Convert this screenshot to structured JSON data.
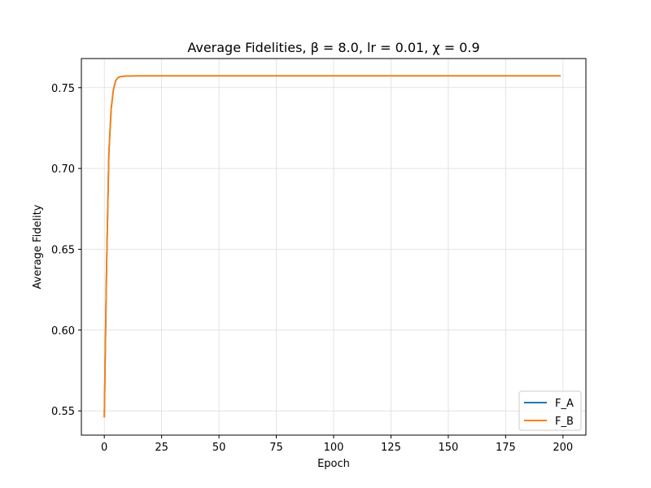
{
  "chart_data": {
    "type": "line",
    "title": "Average Fidelities, β = 8.0, lr = 0.01, χ = 0.9",
    "xlabel": "Epoch",
    "ylabel": "Average Fidelity",
    "xlim": [
      -10,
      210
    ],
    "ylim": [
      0.535,
      0.768
    ],
    "xticks": [
      0,
      25,
      50,
      75,
      100,
      125,
      150,
      175,
      200
    ],
    "xtick_labels": [
      "0",
      "25",
      "50",
      "75",
      "100",
      "125",
      "150",
      "175",
      "200"
    ],
    "yticks": [
      0.55,
      0.6,
      0.65,
      0.7,
      0.75
    ],
    "ytick_labels": [
      "0.55",
      "0.60",
      "0.65",
      "0.70",
      "0.75"
    ],
    "grid": true,
    "legend_position": "lower-right",
    "series": [
      {
        "name": "F_A",
        "color": "#1f77b4",
        "points": [
          [
            0,
            0.546
          ],
          [
            1,
            0.64
          ],
          [
            2,
            0.71
          ],
          [
            3,
            0.737
          ],
          [
            4,
            0.749
          ],
          [
            5,
            0.7545
          ],
          [
            6,
            0.7562
          ],
          [
            7,
            0.7568
          ],
          [
            8,
            0.757
          ],
          [
            10,
            0.7572
          ],
          [
            15,
            0.7573
          ],
          [
            20,
            0.7573
          ],
          [
            199,
            0.7573
          ]
        ]
      },
      {
        "name": "F_B",
        "color": "#ff7f0e",
        "points": [
          [
            0,
            0.546
          ],
          [
            1,
            0.64
          ],
          [
            2,
            0.71
          ],
          [
            3,
            0.737
          ],
          [
            4,
            0.749
          ],
          [
            5,
            0.7545
          ],
          [
            6,
            0.7562
          ],
          [
            7,
            0.7568
          ],
          [
            8,
            0.757
          ],
          [
            10,
            0.7572
          ],
          [
            15,
            0.7573
          ],
          [
            20,
            0.7573
          ],
          [
            199,
            0.7573
          ]
        ]
      }
    ]
  }
}
